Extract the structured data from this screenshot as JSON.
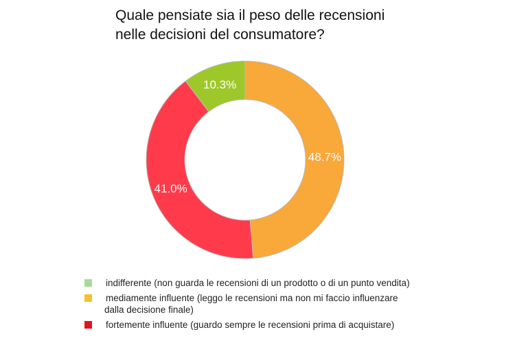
{
  "chart_data": {
    "type": "pie",
    "title_lines": [
      "Quale pensiate sia il peso delle recensioni",
      "nelle decisioni del consumatore?"
    ],
    "donut": true,
    "legend_position": "bottom",
    "series": [
      {
        "name": "indifferente (non guarda le recensioni di un prodotto o di un punto vendita)",
        "label": "10.3%",
        "value": 10.3,
        "color": "#9ec82a",
        "swatch": "#a6d99a"
      },
      {
        "name": "mediamente influente (leggo le recensioni ma non mi faccio influenzare",
        "name_line2": "dalla decisione finale)",
        "label": "48.7%",
        "value": 48.7,
        "color": "#f9a83a",
        "swatch": "#f4c12f"
      },
      {
        "name": "fortemente influente (guardo sempre le recensioni prima di acquistare)",
        "label": "41.0%",
        "value": 41.0,
        "color": "#ff3b4b",
        "swatch": "#e3141c"
      }
    ]
  }
}
